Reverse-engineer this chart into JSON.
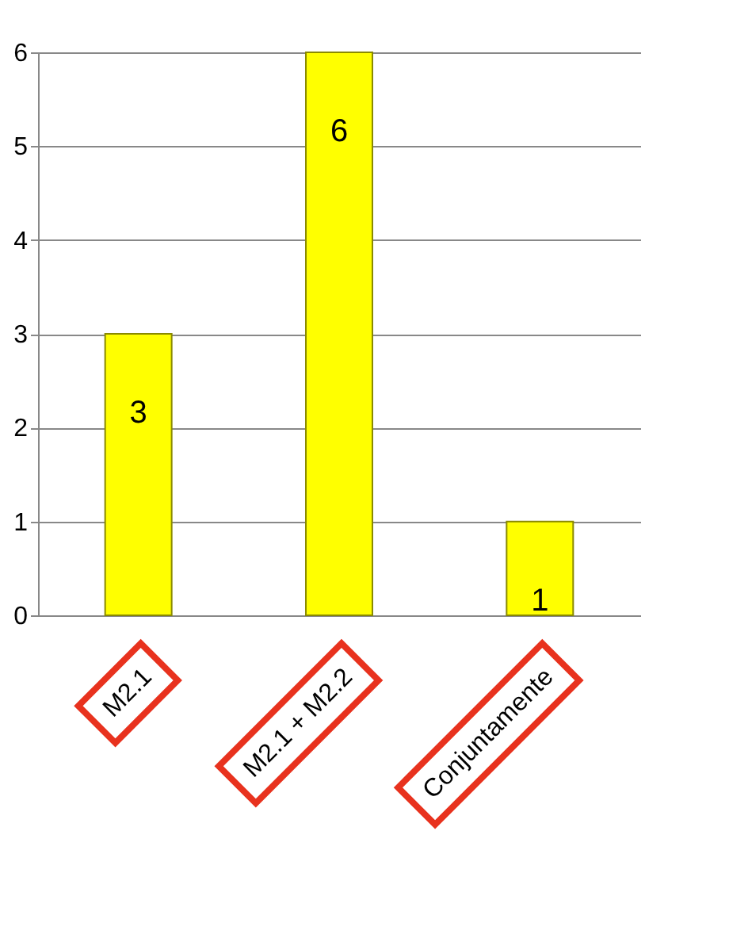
{
  "chart_data": {
    "type": "bar",
    "categories": [
      "M2.1",
      "M2.1 + M2.2",
      "Conjuntamente"
    ],
    "values": [
      3,
      6,
      1
    ],
    "color": "#ffff00",
    "ylim": [
      0,
      6
    ],
    "yticks": [
      0,
      1,
      2,
      3,
      4,
      5,
      6
    ],
    "grid": "y",
    "data_labels": true
  }
}
